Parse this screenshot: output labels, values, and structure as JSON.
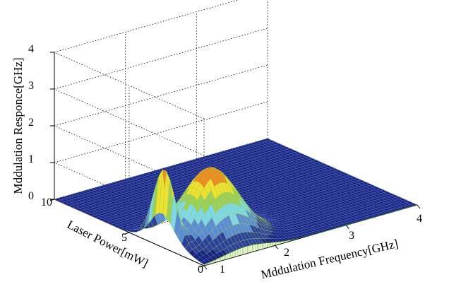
{
  "chart_data": {
    "type": "surface",
    "title": "",
    "xlabel": "Mddulation Frequency[GHz]",
    "ylabel": "Laser Power[mW]",
    "zlabel": "Mddulation Responce[GHz]",
    "xlim": [
      1,
      4
    ],
    "ylim": [
      0,
      10
    ],
    "zlim": [
      0,
      4
    ],
    "x_ticks": [
      "1",
      "2",
      "3",
      "4"
    ],
    "y_ticks": [
      "0",
      "5",
      "10"
    ],
    "z_ticks": [
      "0",
      "1",
      "2",
      "3",
      "4"
    ],
    "grid": true,
    "colormap": [
      "#1a237e",
      "#2d3f9e",
      "#5b8ad6",
      "#7fd8e8",
      "#9ecf5a",
      "#f0e030",
      "#f08a20",
      "#d82020"
    ],
    "peaks": [
      {
        "x": 1.05,
        "y": 2.9,
        "z": 1.7
      },
      {
        "x": 1.6,
        "y": 2.4,
        "z": 1.9
      }
    ],
    "baseline_z": 0
  }
}
